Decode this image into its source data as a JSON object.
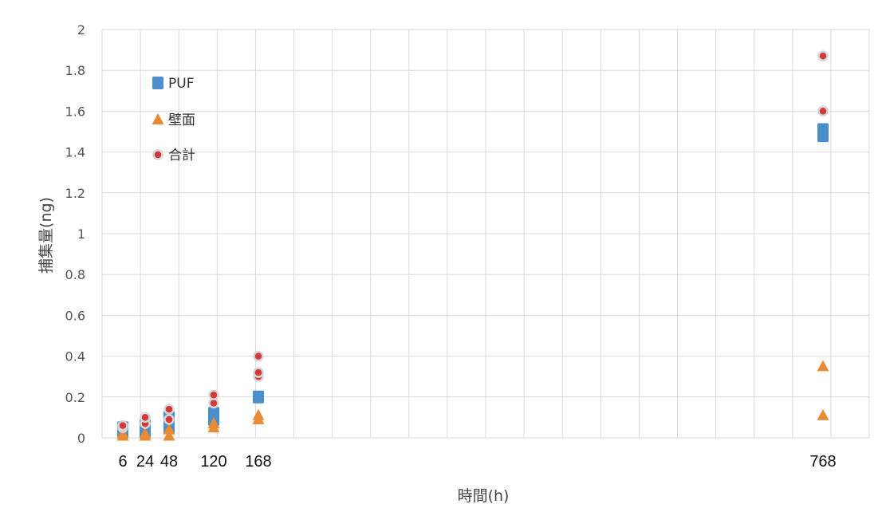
{
  "chart_data": {
    "type": "scatter",
    "title": "",
    "xlabel": "時間(h)",
    "ylabel": "捕集量(ng)",
    "ylim": [
      0,
      2
    ],
    "yticks": [
      "0",
      "0.2",
      "0.4",
      "0.6",
      "0.8",
      "1",
      "1.2",
      "1.4",
      "1.6",
      "1.8",
      "2"
    ],
    "x_tick_labels": [
      "6",
      "24",
      "48",
      "120",
      "168",
      "768"
    ],
    "grid": true,
    "legend_position": "top-left",
    "series": [
      {
        "name": "PUF",
        "marker": "square",
        "color": "#4a8fcc",
        "points": [
          {
            "x": 6,
            "y": 0.03
          },
          {
            "x": 6,
            "y": 0.05
          },
          {
            "x": 24,
            "y": 0.03
          },
          {
            "x": 24,
            "y": 0.06
          },
          {
            "x": 48,
            "y": 0.05
          },
          {
            "x": 48,
            "y": 0.1
          },
          {
            "x": 120,
            "y": 0.09
          },
          {
            "x": 120,
            "y": 0.12
          },
          {
            "x": 168,
            "y": 0.2
          },
          {
            "x": 768,
            "y": 1.48
          },
          {
            "x": 768,
            "y": 1.51
          }
        ]
      },
      {
        "name": "壁面",
        "marker": "triangle",
        "color": "#e98a35",
        "points": [
          {
            "x": 6,
            "y": 0.01
          },
          {
            "x": 6,
            "y": 0.02
          },
          {
            "x": 24,
            "y": 0.01
          },
          {
            "x": 24,
            "y": 0.02
          },
          {
            "x": 48,
            "y": 0.01
          },
          {
            "x": 48,
            "y": 0.04
          },
          {
            "x": 120,
            "y": 0.05
          },
          {
            "x": 120,
            "y": 0.07
          },
          {
            "x": 168,
            "y": 0.09
          },
          {
            "x": 168,
            "y": 0.11
          },
          {
            "x": 768,
            "y": 0.11
          },
          {
            "x": 768,
            "y": 0.35
          }
        ]
      },
      {
        "name": "合計",
        "marker": "circle",
        "color": "#d23a3a",
        "points": [
          {
            "x": 6,
            "y": 0.05
          },
          {
            "x": 6,
            "y": 0.06
          },
          {
            "x": 24,
            "y": 0.07
          },
          {
            "x": 24,
            "y": 0.1
          },
          {
            "x": 48,
            "y": 0.09
          },
          {
            "x": 48,
            "y": 0.14
          },
          {
            "x": 120,
            "y": 0.17
          },
          {
            "x": 120,
            "y": 0.21
          },
          {
            "x": 168,
            "y": 0.3
          },
          {
            "x": 168,
            "y": 0.32
          },
          {
            "x": 168,
            "y": 0.4
          },
          {
            "x": 768,
            "y": 1.6
          },
          {
            "x": 768,
            "y": 1.87
          }
        ]
      }
    ]
  }
}
